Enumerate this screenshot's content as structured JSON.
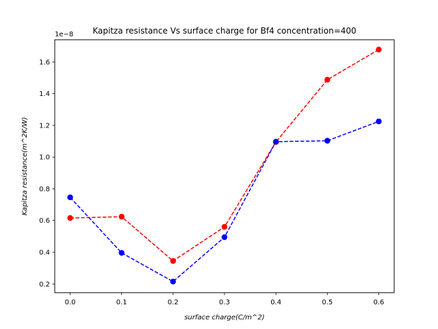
{
  "chart_data": {
    "type": "line",
    "title": "Kapitza resistance Vs surface charge for Bf4 concentration=400",
    "xlabel": "surface charge(C/m^2)",
    "ylabel": "Kapitza resistance(m^2K/W)",
    "y_offset_text": "1e−8",
    "x": [
      0.0,
      0.1,
      0.2,
      0.3,
      0.4,
      0.5,
      0.6
    ],
    "xticks": [
      "0.0",
      "0.1",
      "0.2",
      "0.3",
      "0.4",
      "0.5",
      "0.6"
    ],
    "yticks": [
      "0.2",
      "0.4",
      "0.6",
      "0.8",
      "1.0",
      "1.2",
      "1.4",
      "1.6"
    ],
    "xlim": [
      -0.03,
      0.63
    ],
    "ylim": [
      0.145,
      1.74
    ],
    "grid": false,
    "series": [
      {
        "color": "#ff0000",
        "linestyle": "dashed",
        "marker": "circle",
        "values": [
          0.616,
          0.624,
          0.345,
          0.56,
          1.095,
          1.488,
          1.678
        ]
      },
      {
        "color": "#0000ff",
        "linestyle": "dashed",
        "marker": "circle",
        "values": [
          0.746,
          0.396,
          0.215,
          0.495,
          1.097,
          1.103,
          1.225
        ]
      }
    ]
  }
}
